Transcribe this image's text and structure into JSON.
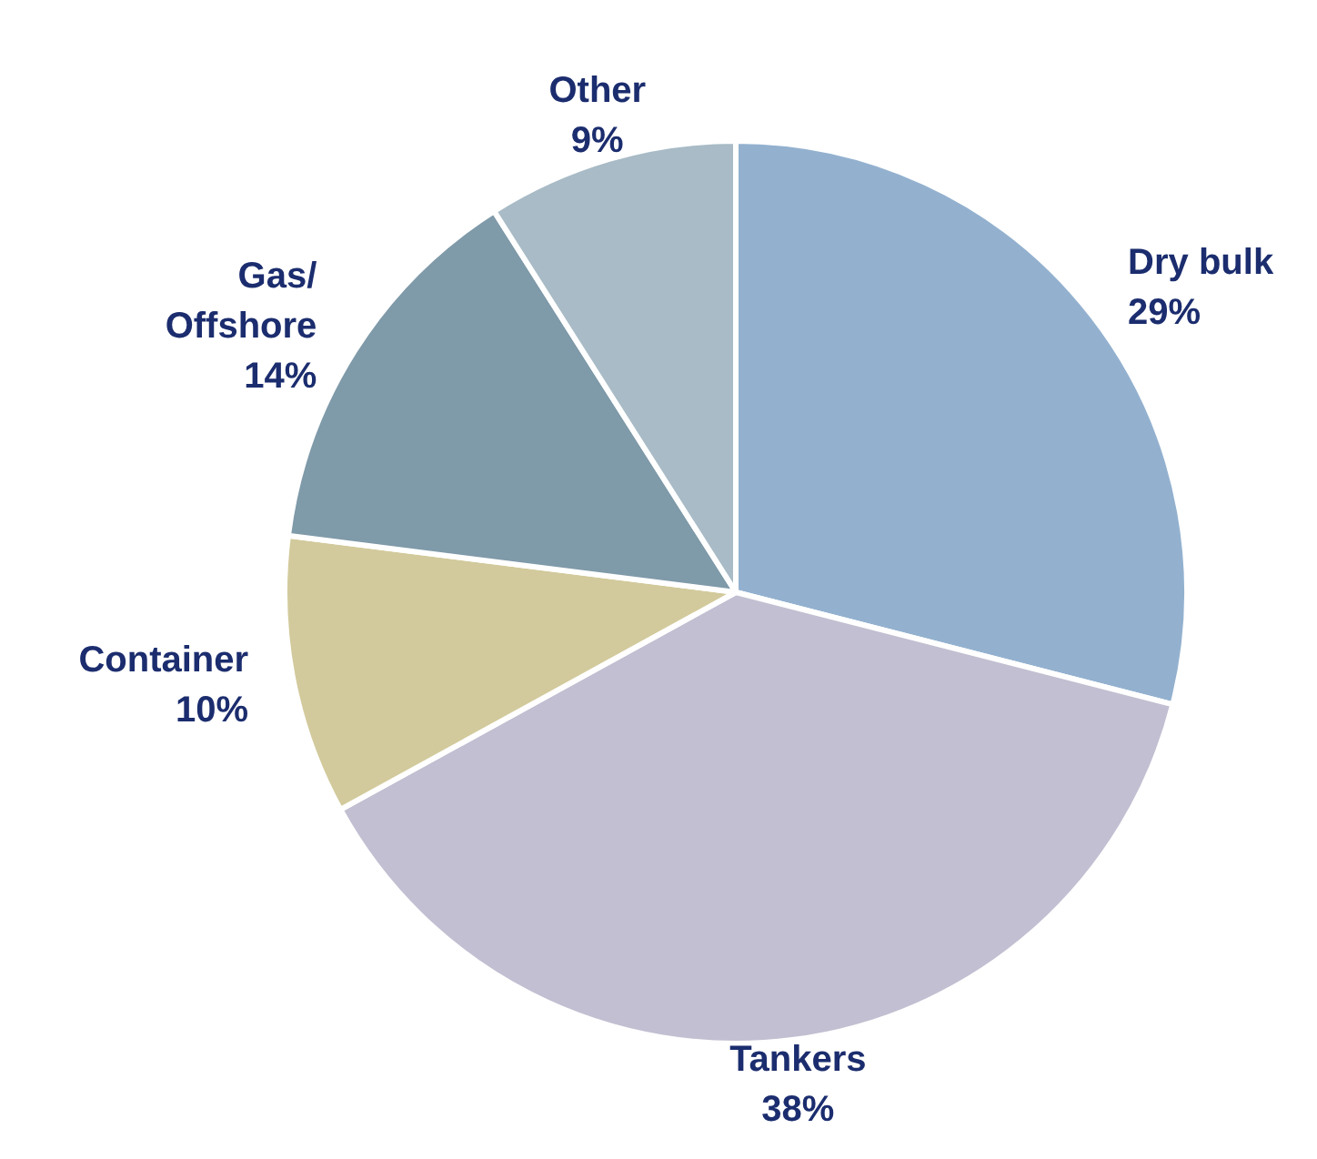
{
  "chart_data": {
    "type": "pie",
    "categories": [
      "Dry bulk",
      "Tankers",
      "Container",
      "Gas/\nOffshore",
      "Other"
    ],
    "values": [
      29,
      38,
      10,
      14,
      9
    ],
    "colors": [
      "#93b1cf",
      "#c1bfd1",
      "#d2ca9c",
      "#7f9aa9",
      "#a8bbc6"
    ],
    "value_labels": [
      "29%",
      "38%",
      "10%",
      "14%",
      "9%"
    ]
  }
}
